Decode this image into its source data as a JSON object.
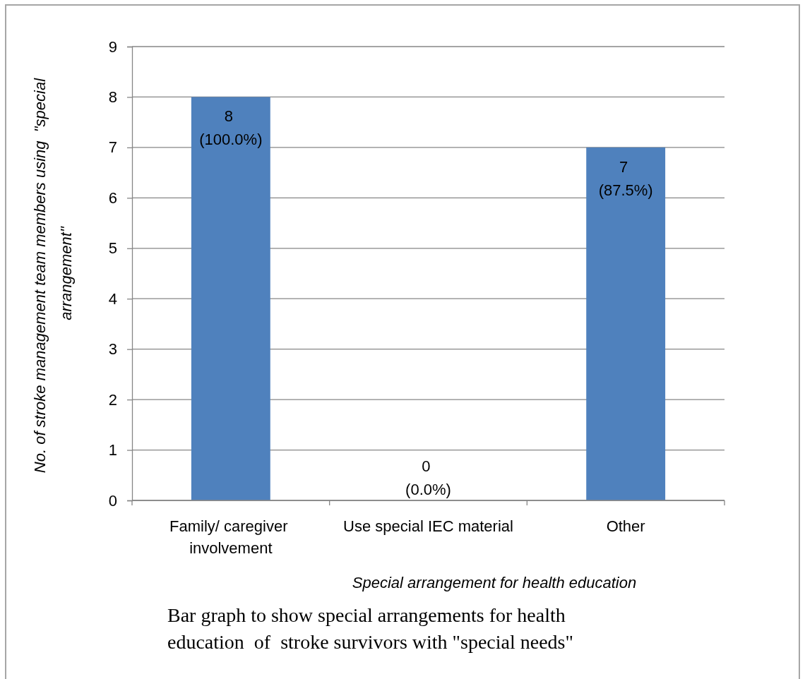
{
  "chart_data": {
    "type": "bar",
    "xlabel": "Special arrangement for health education",
    "ylabel": "No. of stroke management team members using  \"special arrangement\"",
    "categories": [
      "Family/ caregiver involvement",
      "Use special IEC material",
      "Other"
    ],
    "values": [
      8,
      0,
      7
    ],
    "color": "#4f81bd",
    "value_labels": [
      "8 (100.0%)",
      "0 (0.0%)",
      "7 (87.5%)"
    ],
    "ylim": [
      0,
      9
    ],
    "yticks": [
      0,
      1,
      2,
      3,
      4,
      5,
      6,
      7,
      8,
      9
    ],
    "grid": "y",
    "annotations": [
      "Bar graph to show special arrangements for health education  of  stroke survivors with \"special needs\""
    ]
  }
}
